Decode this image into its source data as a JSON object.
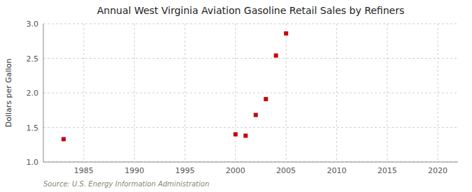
{
  "chart_data": {
    "type": "scatter",
    "title": "Annual West Virginia Aviation Gasoline Retail Sales by Refiners",
    "ylabel": "Dollars per Gallon",
    "annotation": "Source: U.S. Energy Information Administration",
    "x": [
      1983,
      2000,
      2001,
      2002,
      2003,
      2004,
      2005
    ],
    "values": [
      1.33,
      1.4,
      1.38,
      1.68,
      1.91,
      2.54,
      2.86
    ],
    "color": "#cc0000",
    "marker": "square",
    "xlim": [
      1981,
      2022
    ],
    "ylim": [
      1.0,
      3.0
    ],
    "xticks": [
      1985,
      1990,
      1995,
      2000,
      2005,
      2010,
      2015,
      2020
    ],
    "yticks": [
      {
        "value": 1.0,
        "label": "1.0"
      },
      1.5,
      {
        "value": 2.0,
        "label": "2.0"
      },
      2.5,
      {
        "value": 3.0,
        "label": "3.0"
      }
    ],
    "grid": true
  }
}
